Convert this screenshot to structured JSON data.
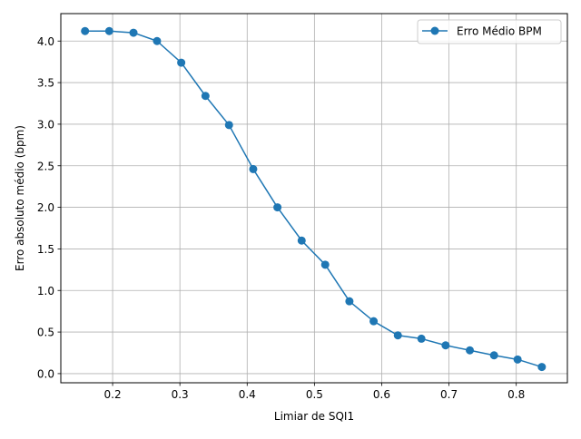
{
  "chart_data": {
    "type": "line",
    "title": "",
    "xlabel": "Limiar de SQI1",
    "ylabel": "Erro absoluto médio (bpm)",
    "xlim": [
      0.123,
      0.876
    ],
    "ylim": [
      -0.11,
      4.33
    ],
    "xticks": [
      0.2,
      0.3,
      0.4,
      0.5,
      0.6,
      0.7,
      0.8
    ],
    "yticks": [
      0.0,
      0.5,
      1.0,
      1.5,
      2.0,
      2.5,
      3.0,
      3.5,
      4.0
    ],
    "xtick_labels": [
      "0.2",
      "0.3",
      "0.4",
      "0.5",
      "0.6",
      "0.7",
      "0.8"
    ],
    "ytick_labels": [
      "0.0",
      "0.5",
      "1.0",
      "1.5",
      "2.0",
      "2.5",
      "3.0",
      "3.5",
      "4.0"
    ],
    "grid": true,
    "legend_position": "top-right",
    "series": [
      {
        "name": "Erro Médio BPM",
        "color": "#1f77b4",
        "marker": "circle",
        "x": [
          0.159,
          0.195,
          0.231,
          0.266,
          0.302,
          0.338,
          0.373,
          0.409,
          0.445,
          0.481,
          0.516,
          0.552,
          0.588,
          0.624,
          0.659,
          0.695,
          0.731,
          0.767,
          0.802,
          0.838
        ],
        "y": [
          4.12,
          4.12,
          4.1,
          4.0,
          3.74,
          3.34,
          2.99,
          2.46,
          2.0,
          1.6,
          1.31,
          0.87,
          0.63,
          0.46,
          0.42,
          0.34,
          0.28,
          0.22,
          0.17,
          0.08
        ]
      }
    ]
  }
}
